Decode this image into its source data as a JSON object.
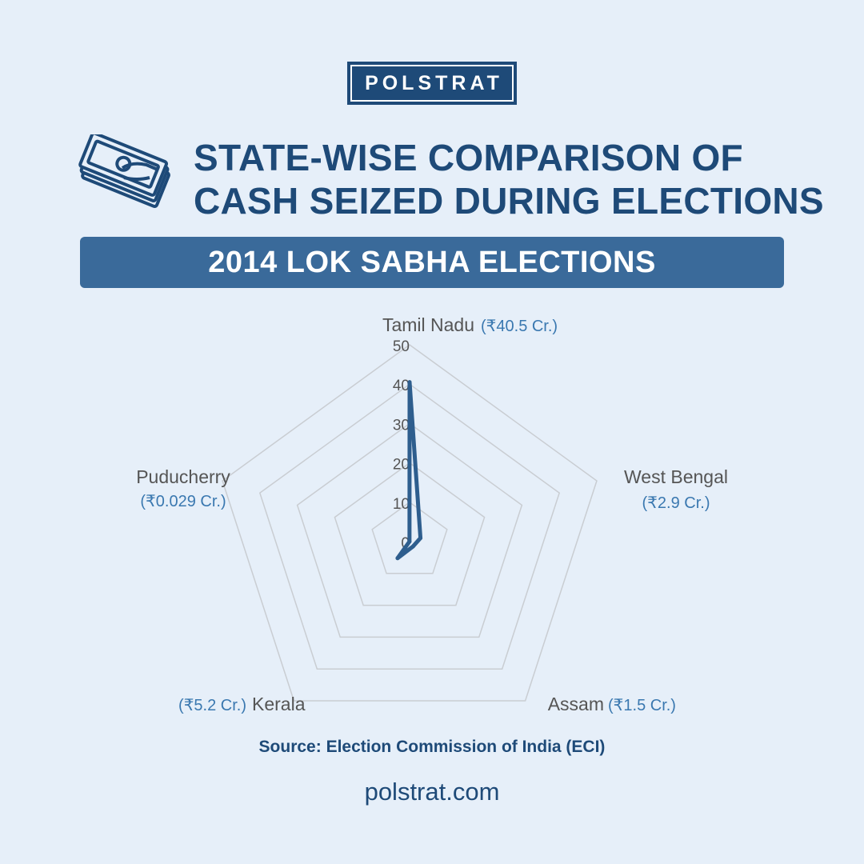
{
  "logo": {
    "text": "POLSTRAT"
  },
  "header": {
    "title_line1": "STATE-WISE COMPARISON OF",
    "title_line2": "CASH SEIZED DURING ELECTIONS",
    "icon": "cash-notes-icon"
  },
  "banner": {
    "text": "2014 LOK SABHA ELECTIONS"
  },
  "chart_data": {
    "type": "radar",
    "categories": [
      "Tamil Nadu",
      "West Bengal",
      "Assam",
      "Kerala",
      "Puducherry"
    ],
    "value_labels": [
      "(₹40.5 Cr.)",
      "(₹2.9 Cr.)",
      "(₹1.5 Cr.)",
      "(₹5.2 Cr.)",
      "(₹0.029 Cr.)"
    ],
    "values": [
      40.5,
      2.9,
      1.5,
      5.2,
      0.029
    ],
    "rlim": [
      0,
      50
    ],
    "ticks": [
      0,
      10,
      20,
      30,
      40,
      50
    ],
    "grid": true,
    "colors": {
      "series": "#2e5e8e",
      "grid": "#c9cdd2",
      "category_text": "#555555",
      "value_text": "#3a78b0"
    }
  },
  "footer": {
    "source": "Source: Election Commission of India (ECI)",
    "website": "polstrat.com"
  }
}
